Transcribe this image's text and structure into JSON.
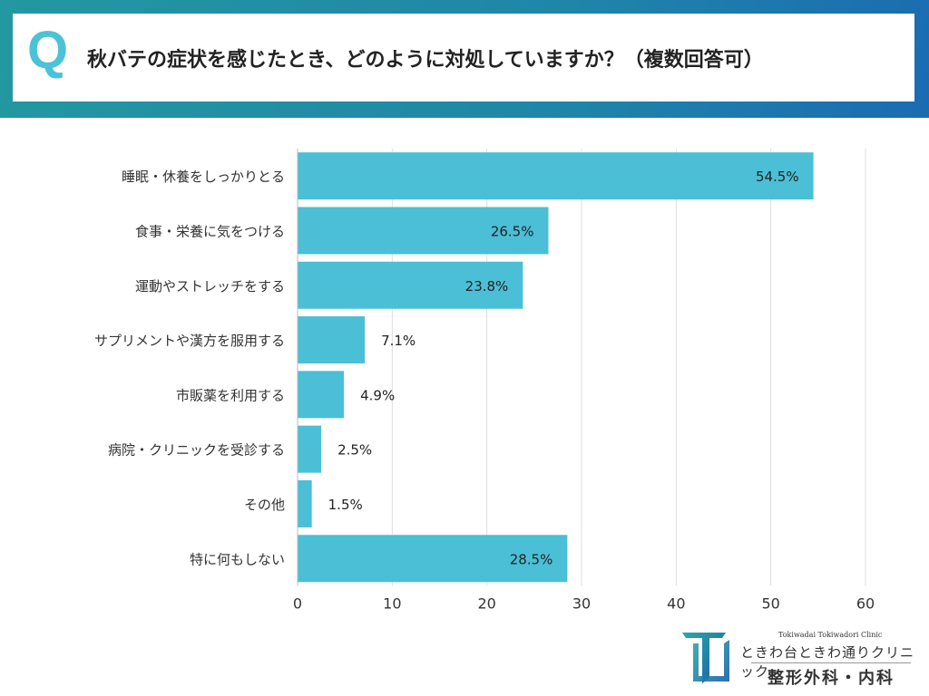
{
  "header": {
    "q_mark": "Q",
    "question": "秋バテの症状を感じたとき、どのように対処していますか？（複数回答可）"
  },
  "chart_data": {
    "type": "bar",
    "orientation": "horizontal",
    "categories": [
      "睡眠・休養をしっかりとる",
      "食事・栄養に気をつける",
      "運動やストレッチをする",
      "サプリメントや漢方を服用する",
      "市販薬を利用する",
      "病院・クリニックを受診する",
      "その他",
      "特に何もしない"
    ],
    "values": [
      54.5,
      26.5,
      23.8,
      7.1,
      4.9,
      2.5,
      1.5,
      28.5
    ],
    "data_labels": [
      "54.5%",
      "26.5%",
      "23.8%",
      "7.1%",
      "4.9%",
      "2.5%",
      "1.5%",
      "28.5%"
    ],
    "xlim": [
      0,
      60
    ],
    "xticks": [
      0,
      10,
      20,
      30,
      40,
      50,
      60
    ],
    "grid": true,
    "bar_color": "#4bbfd6"
  },
  "logo": {
    "english": "Tokiwadai Tokiwadori Clinic",
    "japanese": "ときわ台ときわ通りクリニック",
    "department": "整形外科・内科"
  }
}
